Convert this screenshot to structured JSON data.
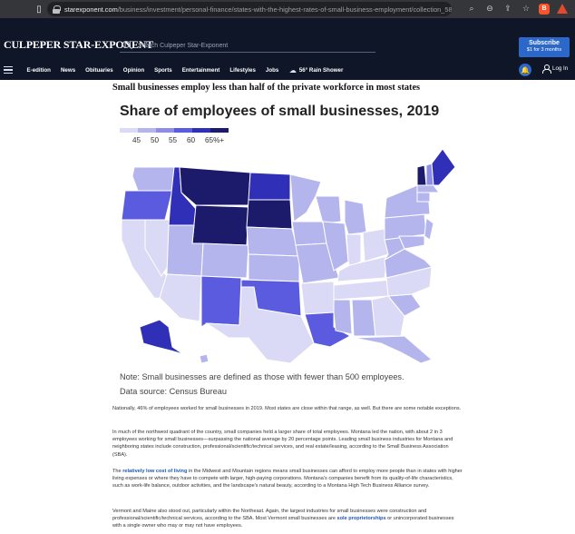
{
  "browser": {
    "url_domain": "starexponent.com",
    "url_path": "/business/investment/personal-finance/states-with-the-highest-rates-of-small-business-employment/collection_5839db5..."
  },
  "site": {
    "masthead": "CULPEPER STAR-EXPONENT",
    "search_placeholder": "Search Culpeper Star-Exponent",
    "subscribe_title": "Subscribe",
    "subscribe_offer": "$1 for 3 months",
    "nav": [
      "E-edition",
      "News",
      "Obituaries",
      "Opinion",
      "Sports",
      "Entertainment",
      "Lifestyles",
      "Jobs"
    ],
    "weather": "56° Rain Shower",
    "login": "Log In"
  },
  "article": {
    "headline": "Small businesses employ less than half of the private workforce in most states",
    "p1": "Nationally, 46% of employees worked for small businesses in 2019. Most states are close within that range, as well. But there are some notable exceptions.",
    "p2": "In much of the northwest quadrant of the country, small companies held a larger share of total employees. Montana led the nation, with about 2 in 3 employees working for small businesses—surpassing the national average by 20 percentage points. Leading small business industries for Montana and neighboring states include construction, professional/scientific/technical services, and real estate/leasing, according to the Small Business Association (SBA).",
    "p3_before": "The ",
    "p3_link": "relatively low cost of living",
    "p3_after": " in the Midwest and Mountain regions means small businesses can afford to employ more people than in states with higher living expenses or where they have to compete with larger, high-paying corporations. Montana's companies benefit from its quality-of-life characteristics, such as work-life balance, outdoor activities, and the landscape's natural beauty, according to a Montana High Tech Business Alliance survey.",
    "p4_before": "Vermont and Maine also stood out, particularly within the Northeast. Again, the largest industries for small businesses were construction and professional/scientific/technical services, according to the SBA. Most Vermont small businesses are ",
    "p4_link": "sole proprietorships",
    "p4_after": " or unincorporated businesses with a single owner who may or may not have employees."
  },
  "chart_data": {
    "type": "choropleth",
    "title": "Share of employees of small businesses, 2019",
    "legend_labels": [
      "45",
      "50",
      "55",
      "60",
      "65%+"
    ],
    "legend_colors": [
      "#dadaf6",
      "#b5b5ee",
      "#8d8de8",
      "#5b5be0",
      "#2f2fb8",
      "#1c1a6b"
    ],
    "note": "Note: Small businesses are defined as those with fewer than 500 employees.",
    "source": "Data source: Census Bureau",
    "states": [
      {
        "name": "Washington",
        "bin": 1
      },
      {
        "name": "Oregon",
        "bin": 3
      },
      {
        "name": "California",
        "bin": 0
      },
      {
        "name": "Nevada",
        "bin": 0
      },
      {
        "name": "Idaho",
        "bin": 4
      },
      {
        "name": "Montana",
        "bin": 5
      },
      {
        "name": "Wyoming",
        "bin": 5
      },
      {
        "name": "Utah",
        "bin": 1
      },
      {
        "name": "Arizona",
        "bin": 0
      },
      {
        "name": "Colorado",
        "bin": 1
      },
      {
        "name": "New Mexico",
        "bin": 3
      },
      {
        "name": "North Dakota",
        "bin": 4
      },
      {
        "name": "South Dakota",
        "bin": 5
      },
      {
        "name": "Nebraska",
        "bin": 1
      },
      {
        "name": "Kansas",
        "bin": 1
      },
      {
        "name": "Oklahoma",
        "bin": 3
      },
      {
        "name": "Texas",
        "bin": 0
      },
      {
        "name": "Minnesota",
        "bin": 1
      },
      {
        "name": "Iowa",
        "bin": 1
      },
      {
        "name": "Missouri",
        "bin": 1
      },
      {
        "name": "Arkansas",
        "bin": 0
      },
      {
        "name": "Louisiana",
        "bin": 3
      },
      {
        "name": "Wisconsin",
        "bin": 1
      },
      {
        "name": "Illinois",
        "bin": 1
      },
      {
        "name": "Michigan",
        "bin": 1
      },
      {
        "name": "Indiana",
        "bin": 0
      },
      {
        "name": "Ohio",
        "bin": 0
      },
      {
        "name": "Kentucky",
        "bin": 0
      },
      {
        "name": "Tennessee",
        "bin": 0
      },
      {
        "name": "Mississippi",
        "bin": 1
      },
      {
        "name": "Alabama",
        "bin": 1
      },
      {
        "name": "Georgia",
        "bin": 0
      },
      {
        "name": "Florida",
        "bin": 1
      },
      {
        "name": "South Carolina",
        "bin": 1
      },
      {
        "name": "North Carolina",
        "bin": 0
      },
      {
        "name": "Virginia",
        "bin": 1
      },
      {
        "name": "West Virginia",
        "bin": 1
      },
      {
        "name": "Pennsylvania",
        "bin": 1
      },
      {
        "name": "New York",
        "bin": 1
      },
      {
        "name": "Maryland",
        "bin": 1
      },
      {
        "name": "New Jersey",
        "bin": 1
      },
      {
        "name": "Vermont",
        "bin": 5
      },
      {
        "name": "New Hampshire",
        "bin": 2
      },
      {
        "name": "Maine",
        "bin": 4
      },
      {
        "name": "Massachusetts",
        "bin": 1
      },
      {
        "name": "Connecticut",
        "bin": 1
      },
      {
        "name": "Alaska",
        "bin": 4
      },
      {
        "name": "Hawaii",
        "bin": 1
      }
    ]
  }
}
